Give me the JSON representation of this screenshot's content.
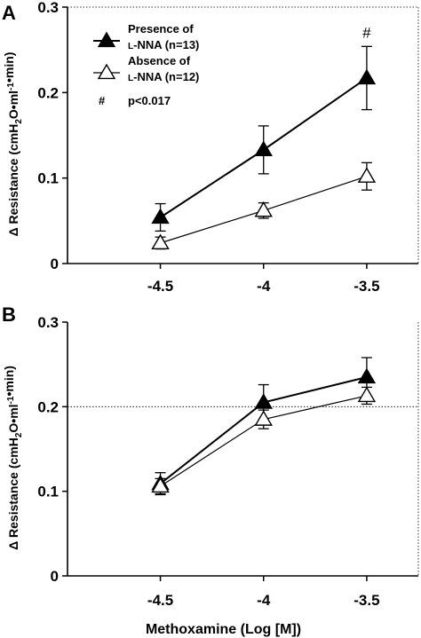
{
  "chart_data": [
    {
      "type": "line",
      "panel_label": "A",
      "x": [
        -4.5,
        -4,
        -3.5
      ],
      "xticks": [
        "-4.5",
        "-4",
        "-3.5"
      ],
      "xlim": [
        -4.95,
        -3.25
      ],
      "ylim": [
        0,
        0.3
      ],
      "yticks": [
        "0",
        "0.1",
        "0.2",
        "0.3"
      ],
      "ylabel": "Δ Resistance (cmH2O•ml-1•min)",
      "xlabel": "",
      "series": [
        {
          "name": "Presence of L-NNA (n=13)",
          "marker": "filled-triangle",
          "values": [
            0.054,
            0.133,
            0.217
          ],
          "error": [
            0.016,
            0.028,
            0.037
          ]
        },
        {
          "name": "Absence of L-NNA (n=12)",
          "marker": "open-triangle",
          "values": [
            0.024,
            0.062,
            0.102
          ],
          "error": [
            0.007,
            0.009,
            0.016
          ]
        }
      ],
      "annotations": [
        {
          "text": "#",
          "x": -3.5
        }
      ],
      "legend": {
        "position": "top-left",
        "entries": [
          {
            "line1": "Presence of",
            "line2": "L-NNA (n=13)"
          },
          {
            "line1": "Absence of",
            "line2": "L-NNA (n=12)"
          }
        ],
        "note_symbol": "#",
        "note_text": "p<0.017"
      }
    },
    {
      "type": "line",
      "panel_label": "B",
      "x": [
        -4.5,
        -4,
        -3.5
      ],
      "xticks": [
        "-4.5",
        "-4",
        "-3.5"
      ],
      "xlim": [
        -4.95,
        -3.25
      ],
      "ylim": [
        0,
        0.3
      ],
      "yticks": [
        "0",
        "0.1",
        "0.2",
        "0.3"
      ],
      "ylabel": "Δ Resistance (cmH2O•ml-1•min)",
      "xlabel": "Methoxamine (Log [M])",
      "series": [
        {
          "name": "Presence of L-NNA (n=13)",
          "marker": "filled-triangle",
          "values": [
            0.109,
            0.205,
            0.235
          ],
          "error": [
            0.013,
            0.021,
            0.023
          ]
        },
        {
          "name": "Absence of L-NNA (n=12)",
          "marker": "open-triangle",
          "values": [
            0.106,
            0.185,
            0.213
          ],
          "error": [
            0.009,
            0.011,
            0.01
          ]
        }
      ]
    }
  ]
}
